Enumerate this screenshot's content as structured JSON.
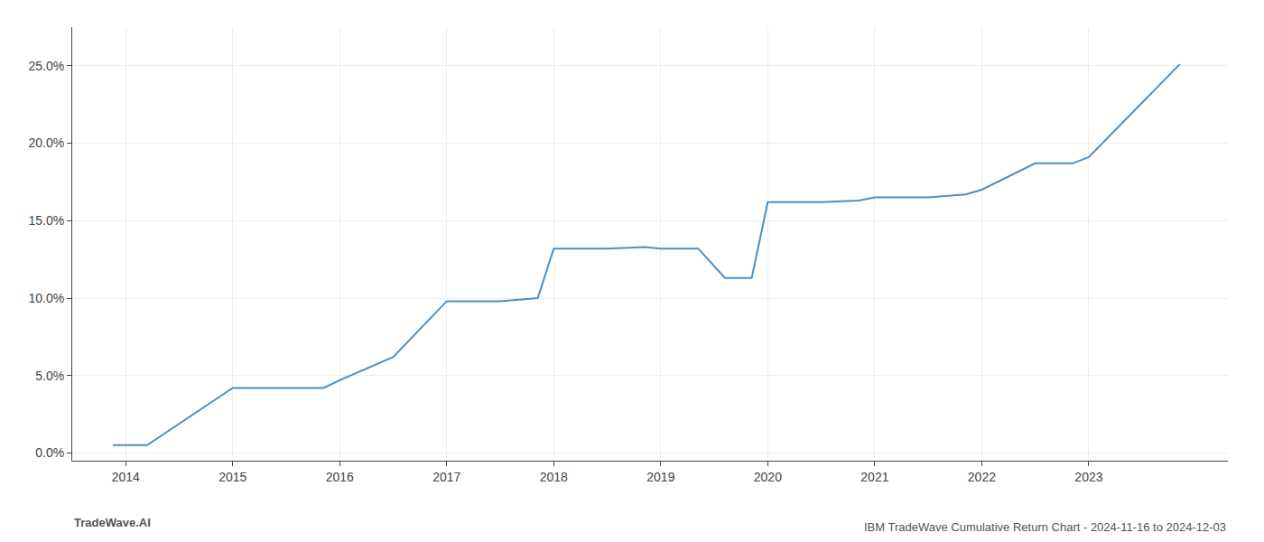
{
  "chart_data": {
    "type": "line",
    "title": "IBM TradeWave Cumulative Return Chart - 2024-11-16 to 2024-12-03",
    "annotations": [
      "TradeWave.AI"
    ],
    "x": [
      2013.88,
      2014.2,
      2015.0,
      2015.85,
      2016.0,
      2016.5,
      2017.0,
      2017.5,
      2017.85,
      2018.0,
      2018.5,
      2018.85,
      2019.0,
      2019.35,
      2019.6,
      2019.85,
      2020.0,
      2020.5,
      2020.85,
      2021.0,
      2021.5,
      2021.85,
      2022.0,
      2022.5,
      2022.85,
      2023.0,
      2023.85
    ],
    "values": [
      0.005,
      0.005,
      0.042,
      0.042,
      0.047,
      0.062,
      0.098,
      0.098,
      0.1,
      0.132,
      0.132,
      0.133,
      0.132,
      0.132,
      0.113,
      0.113,
      0.162,
      0.162,
      0.163,
      0.165,
      0.165,
      0.167,
      0.17,
      0.187,
      0.187,
      0.191,
      0.251
    ],
    "color": "#4a90c4",
    "xlim": [
      2013.5,
      2024.3
    ],
    "xticks": [
      2014,
      2015,
      2016,
      2017,
      2018,
      2019,
      2020,
      2021,
      2022,
      2023
    ],
    "ylim": [
      -0.005,
      0.275
    ],
    "yticks": [
      {
        "value": 0.0,
        "label": "0.0%"
      },
      {
        "value": 0.05,
        "label": "5.0%"
      },
      {
        "value": 0.1,
        "label": "10.0%"
      },
      {
        "value": 0.15,
        "label": "15.0%"
      },
      {
        "value": 0.2,
        "label": "20.0%"
      },
      {
        "value": 0.25,
        "label": "25.0%"
      }
    ],
    "grid": true
  }
}
